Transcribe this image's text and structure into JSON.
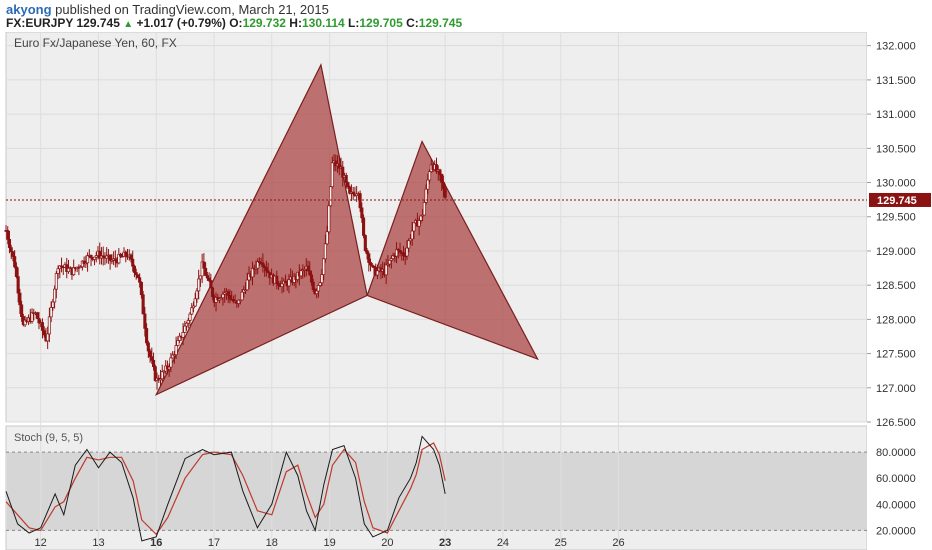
{
  "header": {
    "author": "akyong",
    "published_text": "published on TradingView.com, March 21, 2015",
    "symbol": "FX:EURJPY",
    "last": "129.745",
    "change": "+1.017 (+0.79%)",
    "o_label": "O:",
    "o_value": "129.732",
    "h_label": "H:",
    "h_value": "130.114",
    "l_label": "L:",
    "l_value": "129.705",
    "c_label": "C:",
    "c_value": "129.745"
  },
  "chart_data": {
    "type": "candlestick",
    "title": "Euro Fx/Japanese Yen, 60, FX",
    "indicator_label": "Stoch (9, 5, 5)",
    "price_axis": {
      "min": 126.5,
      "max": 132.2,
      "ticks": [
        "132.000",
        "131.500",
        "131.000",
        "130.500",
        "130.000",
        "129.500",
        "129.000",
        "128.500",
        "128.000",
        "127.500",
        "127.000",
        "126.500"
      ],
      "current_price": "129.745"
    },
    "stoch_axis": {
      "min": 5,
      "max": 100,
      "ticks": [
        "80.0000",
        "60.0000",
        "40.0000",
        "20.0000"
      ],
      "overbought": 80,
      "oversold": 20
    },
    "x_ticks": [
      "12",
      "13",
      "16",
      "17",
      "18",
      "19",
      "20",
      "23",
      "24",
      "25",
      "26"
    ],
    "x_bold": [
      "16",
      "23"
    ],
    "x_range": [
      11.4,
      26.3
    ],
    "price_path": [
      [
        11.4,
        129.3
      ],
      [
        11.55,
        128.8
      ],
      [
        11.7,
        127.9
      ],
      [
        11.9,
        128.1
      ],
      [
        12.1,
        127.7
      ],
      [
        12.3,
        128.8
      ],
      [
        12.55,
        128.7
      ],
      [
        12.8,
        128.9
      ],
      [
        13.0,
        128.95
      ],
      [
        13.25,
        128.85
      ],
      [
        13.5,
        128.95
      ],
      [
        13.7,
        128.6
      ],
      [
        13.85,
        127.6
      ],
      [
        14.0,
        127.1
      ],
      [
        14.2,
        127.3
      ],
      [
        14.4,
        127.7
      ],
      [
        14.6,
        128.1
      ],
      [
        14.8,
        128.8
      ],
      [
        15.0,
        128.3
      ],
      [
        15.2,
        128.4
      ],
      [
        15.4,
        128.2
      ],
      [
        15.6,
        128.6
      ],
      [
        15.8,
        128.9
      ],
      [
        16.0,
        128.6
      ],
      [
        16.2,
        128.5
      ],
      [
        16.4,
        128.6
      ],
      [
        16.6,
        128.75
      ],
      [
        16.75,
        128.4
      ],
      [
        16.85,
        128.6
      ],
      [
        16.95,
        129.2
      ],
      [
        17.05,
        130.3
      ],
      [
        17.2,
        130.2
      ],
      [
        17.35,
        129.8
      ],
      [
        17.5,
        129.9
      ],
      [
        17.6,
        129.1
      ],
      [
        17.75,
        128.7
      ],
      [
        17.95,
        128.7
      ],
      [
        18.15,
        129.0
      ],
      [
        18.3,
        128.95
      ],
      [
        18.45,
        129.35
      ],
      [
        18.6,
        129.5
      ],
      [
        18.75,
        130.3
      ],
      [
        18.9,
        130.1
      ],
      [
        19.0,
        129.8
      ]
    ],
    "harmonic_patterns": [
      {
        "X": [
          14.0,
          126.9
        ],
        "A": [
          16.85,
          131.72
        ],
        "B": [
          17.65,
          128.35
        ],
        "C": [
          18.6,
          130.6
        ],
        "D": [
          20.6,
          127.42
        ]
      }
    ],
    "stoch_k": [
      [
        11.4,
        50
      ],
      [
        11.6,
        25
      ],
      [
        11.8,
        18
      ],
      [
        12.0,
        22
      ],
      [
        12.25,
        48
      ],
      [
        12.4,
        32
      ],
      [
        12.6,
        70
      ],
      [
        12.8,
        82
      ],
      [
        13.0,
        68
      ],
      [
        13.2,
        80
      ],
      [
        13.4,
        72
      ],
      [
        13.6,
        45
      ],
      [
        13.75,
        12
      ],
      [
        14.0,
        15
      ],
      [
        14.2,
        40
      ],
      [
        14.5,
        75
      ],
      [
        14.8,
        82
      ],
      [
        15.0,
        78
      ],
      [
        15.3,
        80
      ],
      [
        15.5,
        50
      ],
      [
        15.75,
        22
      ],
      [
        16.0,
        40
      ],
      [
        16.25,
        80
      ],
      [
        16.45,
        62
      ],
      [
        16.6,
        35
      ],
      [
        16.75,
        20
      ],
      [
        16.9,
        55
      ],
      [
        17.05,
        82
      ],
      [
        17.25,
        85
      ],
      [
        17.45,
        60
      ],
      [
        17.6,
        25
      ],
      [
        17.75,
        15
      ],
      [
        18.0,
        20
      ],
      [
        18.2,
        45
      ],
      [
        18.4,
        60
      ],
      [
        18.5,
        72
      ],
      [
        18.6,
        92
      ],
      [
        18.8,
        82
      ],
      [
        18.9,
        70
      ],
      [
        19.0,
        48
      ]
    ],
    "stoch_d": [
      [
        11.4,
        42
      ],
      [
        11.6,
        32
      ],
      [
        11.8,
        22
      ],
      [
        12.0,
        20
      ],
      [
        12.25,
        38
      ],
      [
        12.4,
        42
      ],
      [
        12.6,
        60
      ],
      [
        12.8,
        76
      ],
      [
        13.0,
        74
      ],
      [
        13.2,
        76
      ],
      [
        13.4,
        76
      ],
      [
        13.6,
        58
      ],
      [
        13.75,
        28
      ],
      [
        14.0,
        17
      ],
      [
        14.2,
        30
      ],
      [
        14.5,
        60
      ],
      [
        14.8,
        78
      ],
      [
        15.0,
        80
      ],
      [
        15.3,
        78
      ],
      [
        15.5,
        62
      ],
      [
        15.75,
        35
      ],
      [
        16.0,
        32
      ],
      [
        16.25,
        65
      ],
      [
        16.45,
        70
      ],
      [
        16.6,
        48
      ],
      [
        16.75,
        30
      ],
      [
        16.9,
        40
      ],
      [
        17.05,
        70
      ],
      [
        17.25,
        82
      ],
      [
        17.45,
        72
      ],
      [
        17.6,
        42
      ],
      [
        17.75,
        22
      ],
      [
        18.0,
        18
      ],
      [
        18.2,
        35
      ],
      [
        18.4,
        52
      ],
      [
        18.5,
        63
      ],
      [
        18.6,
        82
      ],
      [
        18.8,
        87
      ],
      [
        18.9,
        78
      ],
      [
        19.0,
        58
      ]
    ],
    "colors": {
      "pattern_fill": "#a83a3a",
      "pattern_stroke": "#7a1e1e",
      "candle": "#8b1212",
      "stoch_k": "#1a1a1a",
      "stoch_d": "#c0392b",
      "stoch_band": "#d6d6d6",
      "price_tag": "#8b1212"
    }
  }
}
